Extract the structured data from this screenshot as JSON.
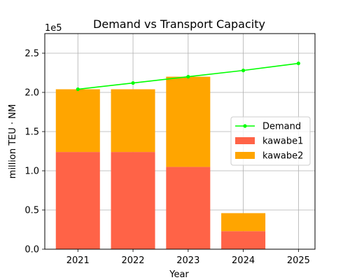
{
  "chart_data": {
    "type": "bar",
    "title": "Demand vs Transport Capacity",
    "xlabel": "Year",
    "ylabel": "million TEU · NM",
    "y_offset_label": "1e5",
    "scale_factor": 100000,
    "categories": [
      "2021",
      "2022",
      "2023",
      "2024",
      "2025"
    ],
    "ylim": [
      0,
      275000
    ],
    "yticks": [
      0,
      50000,
      100000,
      150000,
      200000,
      250000
    ],
    "ytick_labels": [
      "0.0",
      "0.5",
      "1.0",
      "1.5",
      "2.0",
      "2.5"
    ],
    "grid": true,
    "legend_position": "center-right",
    "series": [
      {
        "name": "kawabe1",
        "kind": "bar",
        "color": "#ff6347",
        "values": [
          124000,
          124000,
          105000,
          23000,
          0
        ]
      },
      {
        "name": "kawabe2",
        "kind": "bar",
        "color": "#ffa500",
        "values": [
          80000,
          80000,
          115000,
          23000,
          0
        ]
      },
      {
        "name": "Demand",
        "kind": "line",
        "color": "#00ff00",
        "values": [
          204000,
          212000,
          220000,
          228000,
          237000
        ]
      }
    ]
  }
}
